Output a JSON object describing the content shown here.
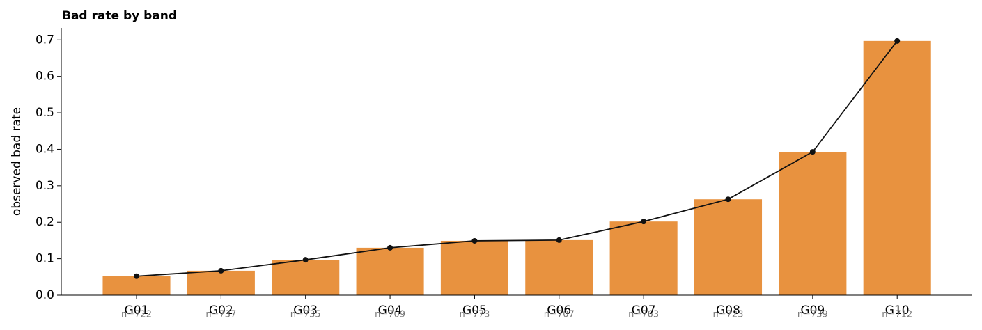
{
  "chart_data": {
    "type": "bar",
    "title": "Bad rate by band",
    "ylabel": "observed bad rate",
    "categories": [
      "G01",
      "G02",
      "G03",
      "G04",
      "G05",
      "G06",
      "G07",
      "G08",
      "G09",
      "G10"
    ],
    "values": [
      0.052,
      0.067,
      0.097,
      0.13,
      0.149,
      0.151,
      0.202,
      0.263,
      0.393,
      0.697
    ],
    "counts": [
      "n=722",
      "n=737",
      "n=735",
      "n=709",
      "n=773",
      "n=707",
      "n=763",
      "n=723",
      "n=739",
      "n=712"
    ],
    "color": "#e8923f",
    "line_color": "#111111",
    "ylim": [
      0,
      0.733
    ],
    "yticks": [
      {
        "value": 0,
        "label": "0.0"
      },
      0.1,
      0.2,
      0.3,
      0.4,
      0.5,
      0.6,
      0.7
    ]
  }
}
